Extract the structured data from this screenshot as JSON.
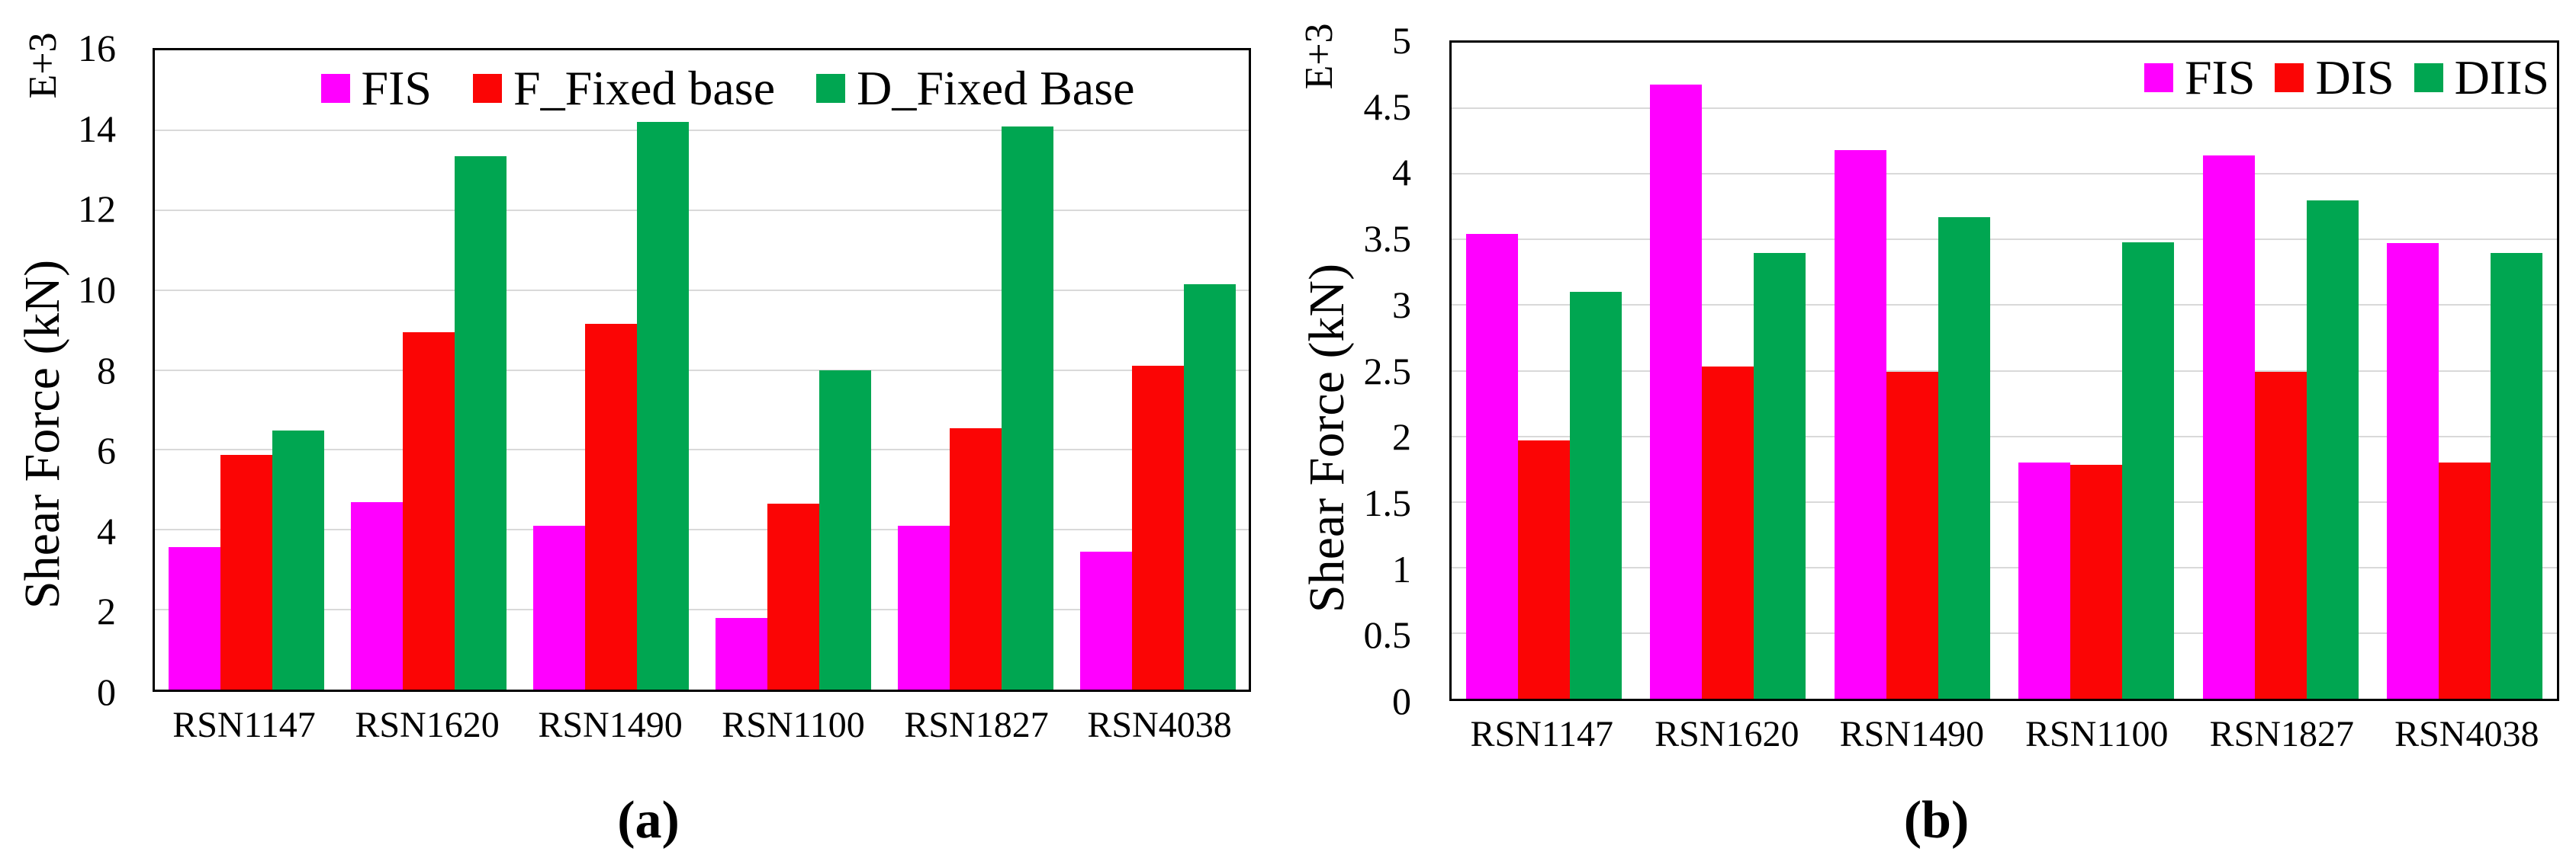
{
  "chart_data": [
    {
      "type": "bar",
      "panel_label": "(a)",
      "ylabel": "Shear Force (kN)",
      "y_scale_label": "E+3",
      "xlabel": "",
      "ylim": [
        0,
        16
      ],
      "ytick_values": [
        0,
        2,
        4,
        6,
        8,
        10,
        12,
        14,
        16
      ],
      "ytick_labels": [
        "0",
        "2",
        "4",
        "6",
        "8",
        "10",
        "12",
        "14",
        "16"
      ],
      "grid": true,
      "legend_position": "top-center",
      "categories": [
        "RSN1147",
        "RSN1620",
        "RSN1490",
        "RSN1100",
        "RSN1827",
        "RSN4038"
      ],
      "series": [
        {
          "name": "FIS",
          "color": "#FF00FF",
          "values": [
            3.57,
            4.69,
            4.1,
            1.8,
            4.1,
            3.45
          ]
        },
        {
          "name": "F_Fixed base",
          "color": "#FB0505",
          "values": [
            5.88,
            8.95,
            9.15,
            4.66,
            6.55,
            8.1
          ]
        },
        {
          "name": "D_Fixed Base",
          "color": "#00A651",
          "values": [
            6.49,
            13.35,
            14.2,
            8.0,
            14.1,
            10.15
          ]
        }
      ]
    },
    {
      "type": "bar",
      "panel_label": "(b)",
      "ylabel": "Shear Force (kN)",
      "y_scale_label": "E+3",
      "xlabel": "",
      "ylim": [
        0,
        5
      ],
      "ytick_values": [
        0,
        0.5,
        1,
        1.5,
        2,
        2.5,
        3,
        3.5,
        4,
        4.5,
        5
      ],
      "ytick_labels": [
        "0",
        "0.5",
        "1",
        "1.5",
        "2",
        "2.5",
        "3",
        "3.5",
        "4",
        "4.5",
        "5"
      ],
      "grid": true,
      "legend_position": "top-right",
      "categories": [
        "RSN1147",
        "RSN1620",
        "RSN1490",
        "RSN1100",
        "RSN1827",
        "RSN4038"
      ],
      "series": [
        {
          "name": "FIS",
          "color": "#FF00FF",
          "values": [
            3.54,
            4.68,
            4.18,
            1.8,
            4.14,
            3.47
          ]
        },
        {
          "name": "DIS",
          "color": "#FB0505",
          "values": [
            1.97,
            2.53,
            2.49,
            1.78,
            2.49,
            1.8
          ]
        },
        {
          "name": "DIIS",
          "color": "#00A651",
          "values": [
            3.1,
            3.4,
            3.67,
            3.48,
            3.8,
            3.4
          ]
        }
      ]
    }
  ]
}
